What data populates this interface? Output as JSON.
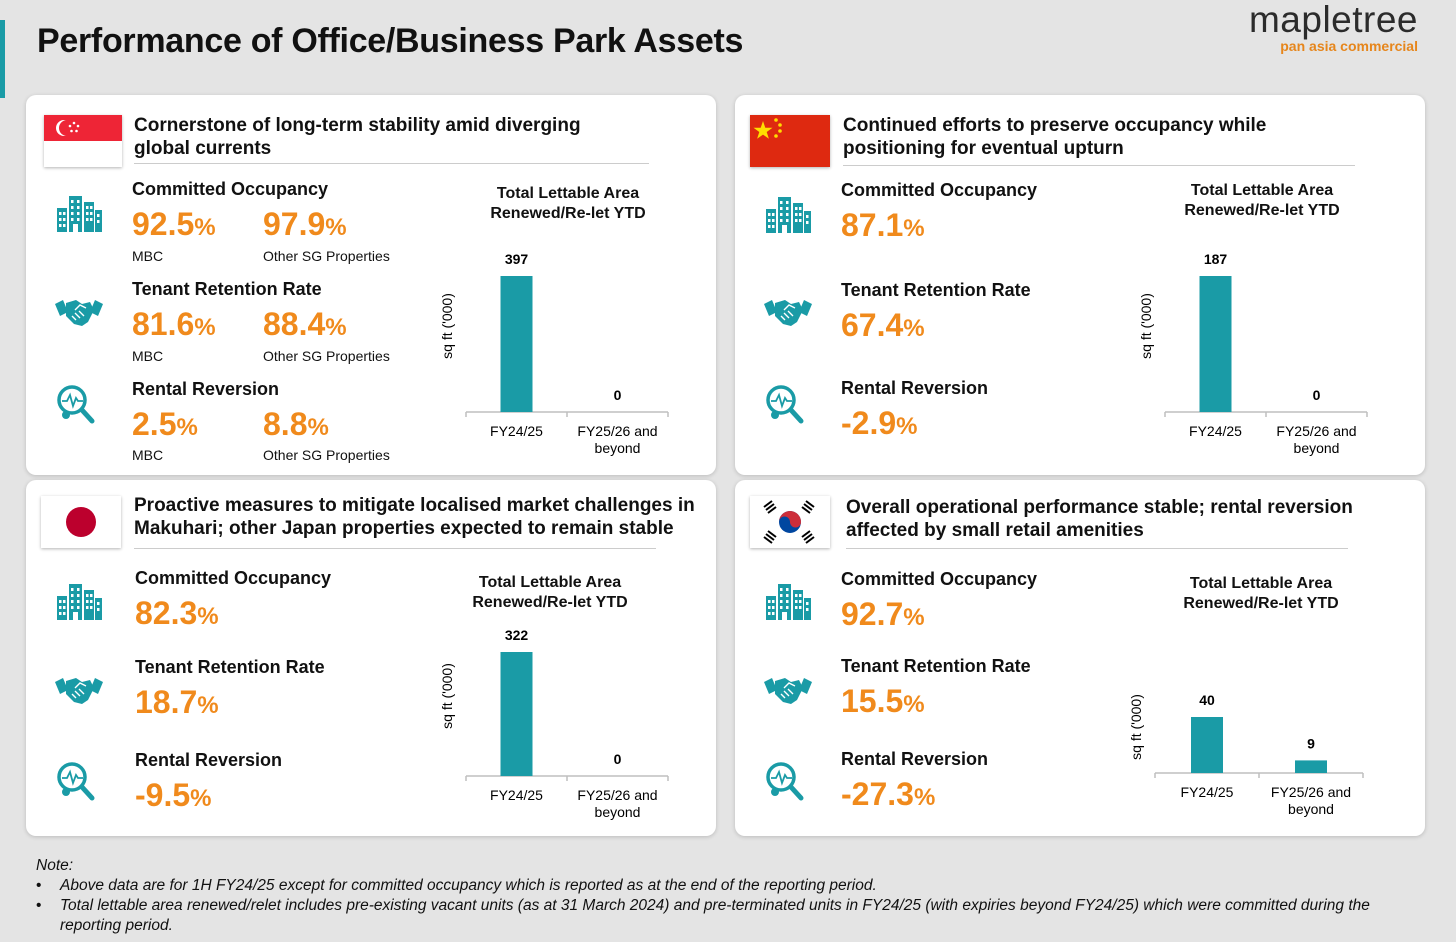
{
  "page_title": "Performance of Office/Business Park Assets",
  "logo": {
    "main": "mapletree",
    "sub": "pan asia commercial"
  },
  "colors": {
    "accent": "#f08a1c",
    "teal": "#1a9ba6"
  },
  "panels": [
    {
      "country": "Singapore",
      "heading": "Cornerstone of long-term stability amid diverging global currents",
      "metrics": [
        {
          "label": "Committed Occupancy",
          "values": [
            {
              "num": "92.5",
              "pct": "%",
              "sub": "MBC"
            },
            {
              "num": "97.9",
              "pct": "%",
              "sub": "Other SG Properties"
            }
          ]
        },
        {
          "label": "Tenant Retention Rate",
          "values": [
            {
              "num": "81.6",
              "pct": "%",
              "sub": "MBC"
            },
            {
              "num": "88.4",
              "pct": "%",
              "sub": "Other SG Properties"
            }
          ]
        },
        {
          "label": "Rental Reversion",
          "values": [
            {
              "num": "2.5",
              "pct": "%",
              "sub": "MBC"
            },
            {
              "num": "8.8",
              "pct": "%",
              "sub": "Other SG Properties"
            }
          ]
        }
      ],
      "chart_title": "Total Lettable Area Renewed/Re-let YTD"
    },
    {
      "country": "China",
      "heading": "Continued efforts to preserve occupancy while positioning for eventual upturn",
      "metrics": [
        {
          "label": "Committed Occupancy",
          "values": [
            {
              "num": "87.1",
              "pct": "%"
            }
          ]
        },
        {
          "label": "Tenant Retention Rate",
          "values": [
            {
              "num": "67.4",
              "pct": "%"
            }
          ]
        },
        {
          "label": "Rental Reversion",
          "values": [
            {
              "num": "-2.9",
              "pct": "%"
            }
          ]
        }
      ],
      "chart_title": "Total Lettable Area Renewed/Re-let YTD"
    },
    {
      "country": "Japan",
      "heading": "Proactive measures to mitigate localised market challenges in Makuhari; other Japan properties expected to remain stable",
      "metrics": [
        {
          "label": "Committed Occupancy",
          "values": [
            {
              "num": "82.3",
              "pct": "%"
            }
          ]
        },
        {
          "label": "Tenant Retention Rate",
          "values": [
            {
              "num": "18.7",
              "pct": "%"
            }
          ]
        },
        {
          "label": "Rental Reversion",
          "values": [
            {
              "num": "-9.5",
              "pct": "%"
            }
          ]
        }
      ],
      "chart_title": "Total Lettable Area Renewed/Re-let YTD"
    },
    {
      "country": "South Korea",
      "heading": "Overall operational performance stable; rental reversion affected by small retail amenities",
      "metrics": [
        {
          "label": "Committed Occupancy",
          "values": [
            {
              "num": "92.7",
              "pct": "%"
            }
          ]
        },
        {
          "label": "Tenant Retention Rate",
          "values": [
            {
              "num": "15.5",
              "pct": "%"
            }
          ]
        },
        {
          "label": "Rental Reversion",
          "values": [
            {
              "num": "-27.3",
              "pct": "%"
            }
          ]
        }
      ],
      "chart_title": "Total Lettable Area Renewed/Re-let YTD"
    }
  ],
  "chart_data": [
    {
      "type": "bar",
      "categories": [
        "FY24/25",
        "FY25/26 and beyond"
      ],
      "values": [
        397,
        0
      ],
      "ylabel": "sq ft ('000)"
    },
    {
      "type": "bar",
      "categories": [
        "FY24/25",
        "FY25/26 and beyond"
      ],
      "values": [
        187,
        0
      ],
      "ylabel": "sq ft ('000)"
    },
    {
      "type": "bar",
      "categories": [
        "FY24/25",
        "FY25/26 and beyond"
      ],
      "values": [
        322,
        0
      ],
      "ylabel": "sq ft ('000)"
    },
    {
      "type": "bar",
      "categories": [
        "FY24/25",
        "FY25/26 and beyond"
      ],
      "values": [
        40,
        9
      ],
      "ylabel": "sq ft ('000)"
    }
  ],
  "note": {
    "title": "Note:",
    "items": [
      "Above data are for 1H FY24/25 except for committed occupancy which is reported as at the end of the reporting period.",
      "Total lettable area renewed/relet includes pre-existing vacant units (as at 31 March 2024) and pre-terminated units in FY24/25 (with expiries beyond FY24/25) which were committed during the reporting period."
    ]
  }
}
